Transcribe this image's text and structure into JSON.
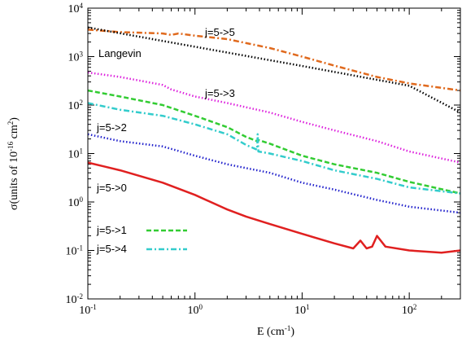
{
  "chart_data": {
    "type": "line",
    "xlabel": "E (cm -1)",
    "ylabel": "σ(units of 10-16 cm2)",
    "xscale": "log",
    "yscale": "log",
    "xlim": [
      0.1,
      300
    ],
    "ylim": [
      0.01,
      10000
    ],
    "x_ticks": [
      {
        "base": "10",
        "exp": "-1"
      },
      {
        "base": "10",
        "exp": "0"
      },
      {
        "base": "10",
        "exp": "1"
      },
      {
        "base": "10",
        "exp": "2"
      }
    ],
    "y_ticks": [
      {
        "base": "10",
        "exp": "-2"
      },
      {
        "base": "10",
        "exp": "-1"
      },
      {
        "base": "10",
        "exp": "0"
      },
      {
        "base": "10",
        "exp": "1"
      },
      {
        "base": "10",
        "exp": "2"
      },
      {
        "base": "10",
        "exp": "3"
      },
      {
        "base": "10",
        "exp": "4"
      }
    ],
    "legend": {
      "placement": "lower-left",
      "entries": [
        {
          "label": "j=5->1",
          "series": "j=5->1"
        },
        {
          "label": "j=5->4",
          "series": "j=5->4"
        }
      ]
    },
    "annotations": [
      {
        "text": "j=5->5",
        "series": "j=5->5"
      },
      {
        "text": "Langevin",
        "series": "Langevin"
      },
      {
        "text": "j=5->3",
        "series": "j=5->3"
      },
      {
        "text": "j=5->2",
        "series": "j=5->2"
      },
      {
        "text": "j=5->0",
        "series": "j=5->0"
      }
    ],
    "series": [
      {
        "name": "j=5->5",
        "color": "#e06a1e",
        "dash": "dashdot",
        "x": [
          0.1,
          0.2,
          0.5,
          0.6,
          0.7,
          1,
          2,
          3,
          5,
          10,
          20,
          50,
          100,
          300
        ],
        "y": [
          3600,
          3200,
          3000,
          2800,
          3000,
          2700,
          2300,
          1900,
          1500,
          1000,
          650,
          380,
          280,
          200
        ]
      },
      {
        "name": "Langevin",
        "color": "#000000",
        "dash": "dotted",
        "x": [
          0.1,
          1,
          10,
          100,
          300
        ],
        "y": [
          4000,
          1600,
          640,
          250,
          70
        ]
      },
      {
        "name": "j=5->3",
        "color": "#dd22dd",
        "dash": "dotted",
        "x": [
          0.1,
          0.2,
          0.5,
          0.6,
          1,
          2,
          3,
          5,
          10,
          20,
          50,
          100,
          300
        ],
        "y": [
          470,
          380,
          260,
          210,
          150,
          110,
          90,
          70,
          45,
          30,
          18,
          11,
          6.5
        ]
      },
      {
        "name": "j=5->1",
        "color": "#33cc33",
        "dash": "dashed",
        "x": [
          0.1,
          0.2,
          0.5,
          1,
          2,
          3,
          3.8,
          3.9,
          5,
          10,
          20,
          50,
          100,
          300
        ],
        "y": [
          200,
          150,
          100,
          60,
          35,
          22,
          18,
          19,
          16,
          9,
          6,
          4,
          2.6,
          1.5
        ]
      },
      {
        "name": "j=5->4",
        "color": "#33cccc",
        "dash": "dashdot",
        "x": [
          0.1,
          0.2,
          0.5,
          1,
          2,
          3,
          3.8,
          3.85,
          3.9,
          5,
          10,
          20,
          50,
          100,
          300
        ],
        "y": [
          110,
          80,
          60,
          40,
          25,
          15,
          12,
          25,
          11,
          10,
          7,
          4.5,
          3,
          2,
          1.5
        ]
      },
      {
        "name": "j=5->2",
        "color": "#2222cc",
        "dash": "dotted",
        "x": [
          0.1,
          0.2,
          0.5,
          1,
          2,
          3,
          5,
          10,
          20,
          50,
          100,
          300
        ],
        "y": [
          25,
          18,
          14,
          9,
          6,
          5,
          4,
          2.5,
          1.8,
          1.1,
          0.8,
          0.6
        ]
      },
      {
        "name": "j=5->0",
        "color": "#e02020",
        "dash": "solid",
        "x": [
          0.1,
          0.2,
          0.5,
          1,
          2,
          3,
          5,
          10,
          20,
          30,
          35,
          40,
          45,
          50,
          60,
          100,
          200,
          300
        ],
        "y": [
          6.5,
          4.5,
          2.5,
          1.4,
          0.7,
          0.5,
          0.35,
          0.22,
          0.14,
          0.11,
          0.16,
          0.11,
          0.12,
          0.2,
          0.12,
          0.1,
          0.09,
          0.1
        ]
      }
    ]
  }
}
